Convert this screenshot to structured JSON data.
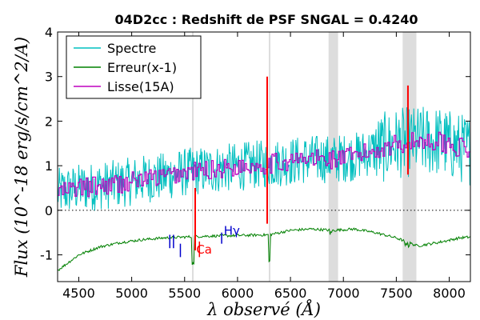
{
  "chart_data": {
    "type": "line",
    "title": "04D2cc : Redshift de PSF SNGAL = 0.4240",
    "xlabel": "λ observé (Å)",
    "ylabel": "Flux (10^-18 erg/s/cm^2/A)",
    "xlim": [
      4300,
      8200
    ],
    "ylim": [
      -1.6,
      4.0
    ],
    "x_ticks": [
      4500,
      5000,
      5500,
      6000,
      6500,
      7000,
      7500,
      8000
    ],
    "y_ticks": [
      -1,
      0,
      1,
      2,
      3,
      4
    ],
    "y_tick_labels": [
      "-1",
      "0",
      "1",
      "2",
      "3",
      "4"
    ],
    "legend_position": "top-left",
    "zero_line": {
      "y": 0,
      "style": "dotted"
    },
    "shaded_bands": [
      {
        "x0": 5570,
        "x1": 5585
      },
      {
        "x0": 6295,
        "x1": 6310
      },
      {
        "x0": 6860,
        "x1": 6950
      },
      {
        "x0": 7560,
        "x1": 7690
      }
    ],
    "series": [
      {
        "name": "Spectre",
        "color": "#00bfbf",
        "x": [
          4300,
          4500,
          4700,
          4900,
          5100,
          5300,
          5500,
          5700,
          5900,
          6100,
          6300,
          6500,
          6700,
          6900,
          7100,
          7300,
          7500,
          7700,
          7900,
          8100,
          8200
        ],
        "values": [
          0.4,
          0.5,
          0.55,
          0.6,
          0.7,
          0.75,
          0.85,
          0.9,
          0.95,
          1.0,
          1.05,
          1.1,
          1.15,
          1.15,
          1.2,
          1.35,
          1.5,
          1.55,
          1.55,
          1.4,
          1.35
        ]
      },
      {
        "name": "Erreur(x-1)",
        "color": "#008000",
        "x": [
          4300,
          4500,
          4700,
          4900,
          5100,
          5300,
          5500,
          5700,
          5900,
          6100,
          6300,
          6500,
          6700,
          6900,
          7100,
          7300,
          7500,
          7700,
          7900,
          8100,
          8200
        ],
        "values": [
          -1.35,
          -1.0,
          -0.82,
          -0.72,
          -0.66,
          -0.62,
          -0.6,
          -0.58,
          -0.57,
          -0.56,
          -0.55,
          -0.45,
          -0.42,
          -0.45,
          -0.42,
          -0.5,
          -0.62,
          -0.8,
          -0.72,
          -0.62,
          -0.6
        ]
      },
      {
        "name": "Lisse(15A)",
        "color": "#bf00bf",
        "x": [
          4300,
          4500,
          4700,
          4900,
          5100,
          5300,
          5500,
          5700,
          5900,
          6100,
          6300,
          6500,
          6700,
          6900,
          7100,
          7300,
          7500,
          7700,
          7900,
          8100,
          8200
        ],
        "values": [
          0.4,
          0.5,
          0.55,
          0.6,
          0.7,
          0.75,
          0.85,
          0.9,
          0.95,
          1.0,
          1.05,
          1.1,
          1.15,
          1.15,
          1.2,
          1.35,
          1.5,
          1.55,
          1.55,
          1.4,
          1.35
        ]
      }
    ],
    "annotations": [
      {
        "text": "Ca",
        "x": 5610,
        "y": -0.97,
        "color": "#ff0000"
      },
      {
        "text": "Hγ",
        "x": 5870,
        "y": -0.55,
        "color": "#0000cc"
      }
    ],
    "line_markers": [
      {
        "x": 5360,
        "y0": -0.55,
        "y1": -0.85,
        "color": "#0000cc"
      },
      {
        "x": 5395,
        "y0": -0.55,
        "y1": -0.85,
        "color": "#0000cc"
      },
      {
        "x": 5460,
        "y0": -0.75,
        "y1": -1.05,
        "color": "#0000cc"
      },
      {
        "x": 5640,
        "y0": -0.7,
        "y1": -1.05,
        "color": "#ff0000"
      },
      {
        "x": 5850,
        "y0": -0.5,
        "y1": -0.75,
        "color": "#0000cc"
      }
    ],
    "red_features": [
      {
        "x": 5600,
        "y0": -0.9,
        "y1": 0.5,
        "color": "#ff0000"
      },
      {
        "x": 6280,
        "y0": -0.3,
        "y1": 3.0,
        "color": "#ff0000"
      },
      {
        "x": 7610,
        "y0": 0.8,
        "y1": 2.8,
        "color": "#ff0000"
      }
    ]
  }
}
